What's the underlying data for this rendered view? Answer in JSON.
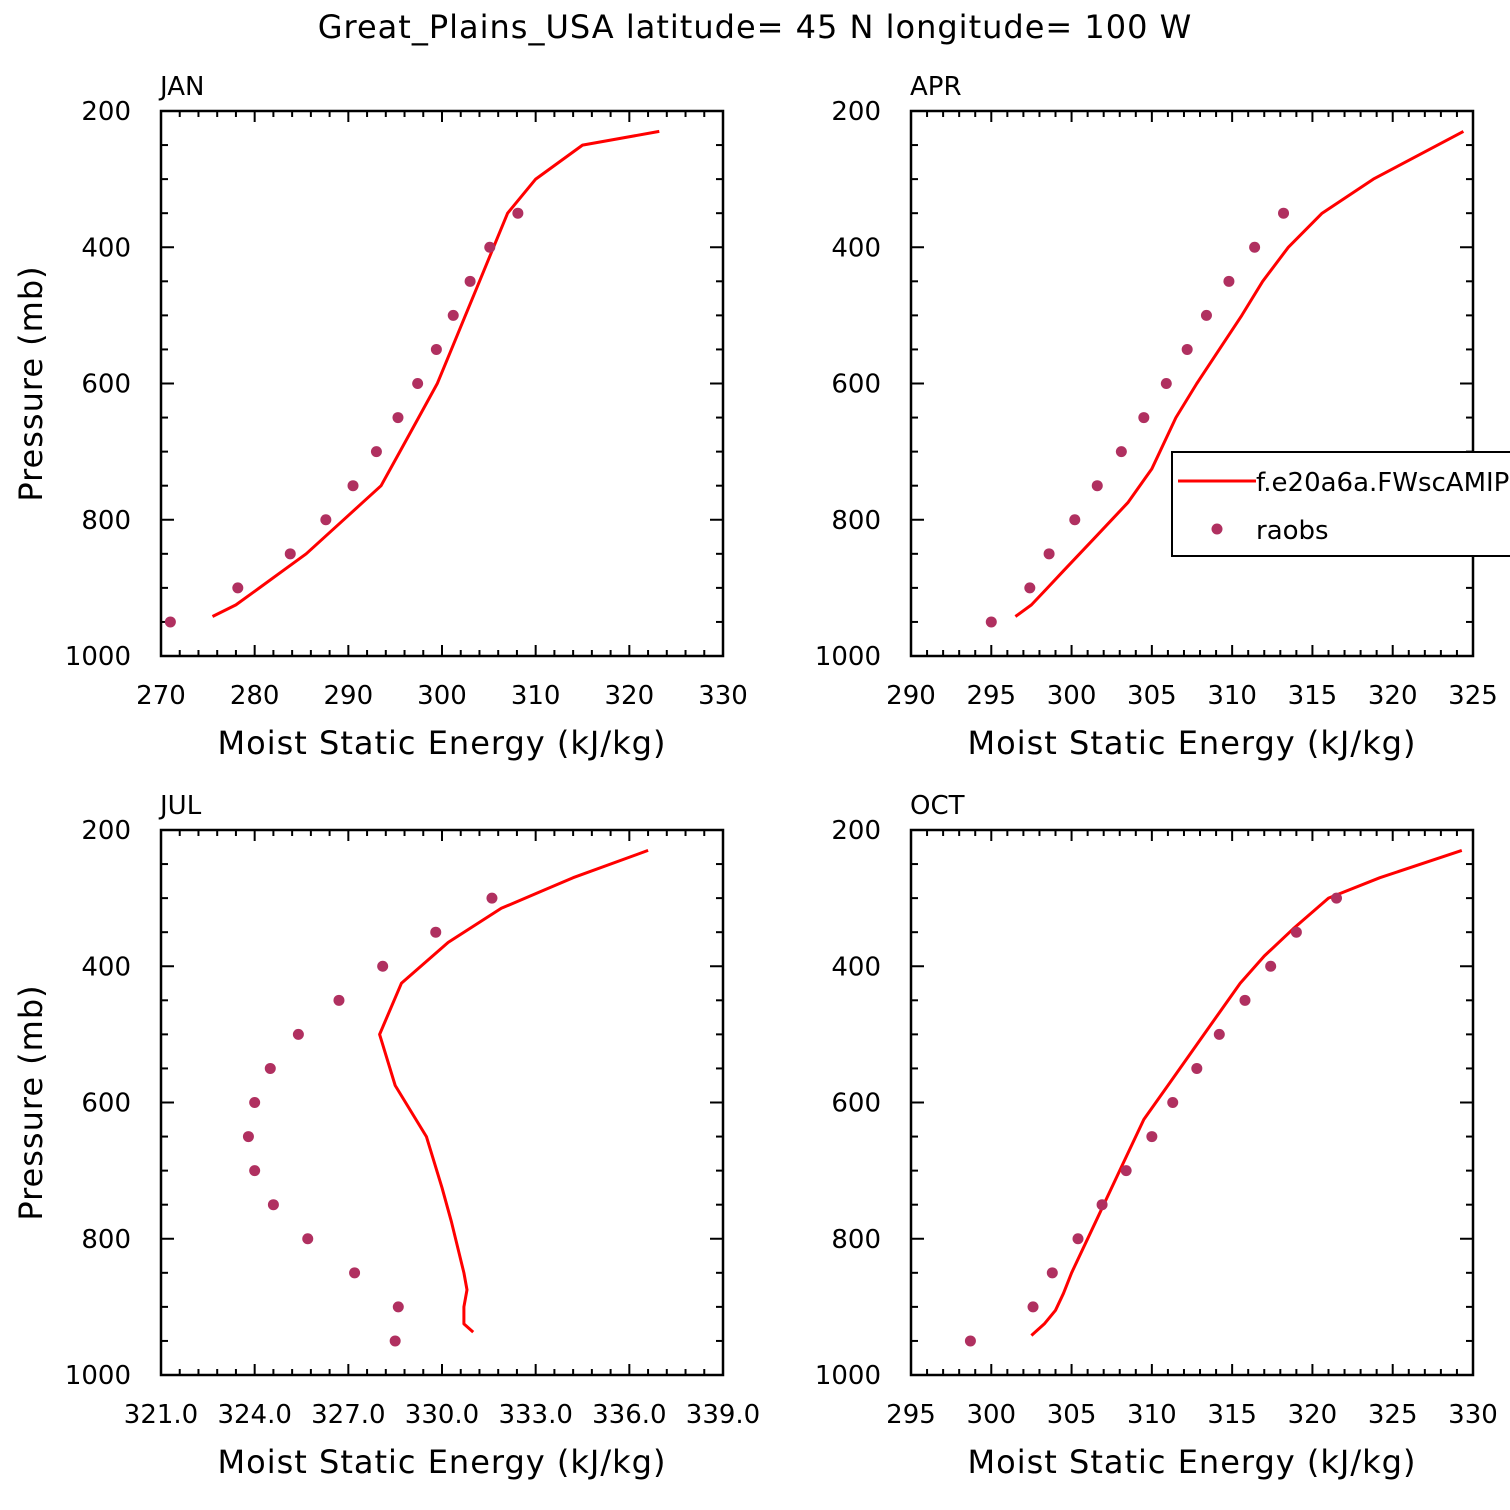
{
  "title": "Great_Plains_USA  latitude= 45 N longitude= 100 W",
  "colors": {
    "model": "#ff0000",
    "obs": "#b03060",
    "axis": "#000000"
  },
  "chart_data": [
    {
      "type": "line",
      "panel_label": "JAN",
      "xlabel": "Moist Static Energy (kJ/kg)",
      "ylabel": "Pressure (mb)",
      "xlim": [
        270,
        330
      ],
      "ylim": [
        1000,
        200
      ],
      "xticks": [
        270,
        280,
        290,
        300,
        310,
        320,
        330
      ],
      "xtick_labels": [
        "270",
        "280",
        "290",
        "300",
        "310",
        "320",
        "330"
      ],
      "yticks": [
        1000,
        800,
        600,
        400,
        200
      ],
      "ytick_labels": [
        "1000",
        "800",
        "600",
        "400",
        "200"
      ],
      "series": [
        {
          "name": "f.e20a6a.FWscAMIP",
          "kind": "line",
          "x": [
            275.5,
            278.0,
            280.5,
            283.0,
            285.5,
            287.5,
            289.5,
            291.5,
            293.5,
            295.5,
            297.5,
            299.5,
            301.0,
            302.5,
            304.0,
            305.5,
            307.0,
            310.0,
            315.0,
            323.2
          ],
          "y": [
            942,
            925,
            900,
            875,
            850,
            825,
            800,
            775,
            750,
            700,
            650,
            600,
            550,
            500,
            450,
            400,
            350,
            300,
            250,
            230
          ]
        },
        {
          "name": "raobs",
          "kind": "scatter",
          "x": [
            271.0,
            278.2,
            283.8,
            287.6,
            290.5,
            293.0,
            295.3,
            297.4,
            299.4,
            301.2,
            303.0,
            305.1,
            308.1
          ],
          "y": [
            950,
            900,
            850,
            800,
            750,
            700,
            650,
            600,
            550,
            500,
            450,
            400,
            350
          ]
        }
      ]
    },
    {
      "type": "line",
      "panel_label": "APR",
      "xlabel": "Moist Static Energy (kJ/kg)",
      "ylabel": "",
      "xlim": [
        290,
        325
      ],
      "ylim": [
        1000,
        200
      ],
      "xticks": [
        290,
        295,
        300,
        305,
        310,
        315,
        320,
        325
      ],
      "xtick_labels": [
        "290",
        "295",
        "300",
        "305",
        "310",
        "315",
        "320",
        "325"
      ],
      "yticks": [
        1000,
        800,
        600,
        400,
        200
      ],
      "ytick_labels": [
        "1000",
        "800",
        "600",
        "400",
        "200"
      ],
      "legend": {
        "position": "right",
        "entries": [
          "f.e20a6a.FWscAMIP",
          "raobs"
        ]
      },
      "series": [
        {
          "name": "f.e20a6a.FWscAMIP",
          "kind": "line",
          "x": [
            296.5,
            297.5,
            298.5,
            299.5,
            300.5,
            301.5,
            302.5,
            303.5,
            305.0,
            306.5,
            307.8,
            309.2,
            310.6,
            311.9,
            313.5,
            315.6,
            318.8,
            324.4
          ],
          "y": [
            942,
            925,
            900,
            875,
            850,
            825,
            800,
            775,
            725,
            650,
            600,
            550,
            500,
            450,
            400,
            350,
            300,
            230
          ]
        },
        {
          "name": "raobs",
          "kind": "scatter",
          "x": [
            295.0,
            297.4,
            298.6,
            300.2,
            301.6,
            303.1,
            304.5,
            305.9,
            307.2,
            308.4,
            309.8,
            311.4,
            313.2
          ],
          "y": [
            950,
            900,
            850,
            800,
            750,
            700,
            650,
            600,
            550,
            500,
            450,
            400,
            350
          ]
        }
      ]
    },
    {
      "type": "line",
      "panel_label": "JUL",
      "xlabel": "Moist Static Energy (kJ/kg)",
      "ylabel": "Pressure (mb)",
      "xlim": [
        321,
        339
      ],
      "ylim": [
        1000,
        200
      ],
      "xticks": [
        321,
        324,
        327,
        330,
        333,
        336,
        339
      ],
      "xtick_labels": [
        "321.0",
        "324.0",
        "327.0",
        "330.0",
        "333.0",
        "336.0",
        "339.0"
      ],
      "yticks": [
        1000,
        800,
        600,
        400,
        200
      ],
      "ytick_labels": [
        "1000",
        "800",
        "600",
        "400",
        "200"
      ],
      "series": [
        {
          "name": "f.e20a6a.FWscAMIP",
          "kind": "line",
          "x": [
            331.0,
            330.7,
            330.7,
            330.8,
            330.7,
            330.3,
            330.0,
            329.5,
            328.5,
            328.0,
            328.7,
            330.2,
            331.9,
            334.2,
            336.6
          ],
          "y": [
            937,
            925,
            900,
            875,
            850,
            775,
            725,
            650,
            575,
            500,
            425,
            365,
            315,
            270,
            230
          ]
        },
        {
          "name": "raobs",
          "kind": "scatter",
          "x": [
            328.5,
            328.6,
            327.2,
            325.7,
            324.6,
            324.0,
            323.8,
            324.0,
            324.5,
            325.4,
            326.7,
            328.1,
            329.8,
            331.6
          ],
          "y": [
            950,
            900,
            850,
            800,
            750,
            700,
            650,
            600,
            550,
            500,
            450,
            400,
            350,
            300
          ]
        }
      ]
    },
    {
      "type": "line",
      "panel_label": "OCT",
      "xlabel": "Moist Static Energy (kJ/kg)",
      "ylabel": "",
      "xlim": [
        295,
        330
      ],
      "ylim": [
        1000,
        200
      ],
      "xticks": [
        295,
        300,
        305,
        310,
        315,
        320,
        325,
        330
      ],
      "xtick_labels": [
        "295",
        "300",
        "305",
        "310",
        "315",
        "320",
        "325",
        "330"
      ],
      "yticks": [
        1000,
        800,
        600,
        400,
        200
      ],
      "ytick_labels": [
        "1000",
        "800",
        "600",
        "400",
        "200"
      ],
      "series": [
        {
          "name": "f.e20a6a.FWscAMIP",
          "kind": "line",
          "x": [
            302.5,
            303.3,
            304.0,
            304.5,
            305.0,
            306.5,
            308.0,
            309.5,
            311.0,
            312.5,
            314.0,
            315.5,
            317.0,
            318.8,
            321.0,
            324.2,
            329.3
          ],
          "y": [
            942,
            925,
            905,
            880,
            850,
            775,
            700,
            625,
            575,
            525,
            475,
            425,
            385,
            345,
            300,
            270,
            230
          ]
        },
        {
          "name": "raobs",
          "kind": "scatter",
          "x": [
            298.7,
            302.6,
            303.8,
            305.4,
            306.9,
            308.4,
            310.0,
            311.3,
            312.8,
            314.2,
            315.8,
            317.4,
            319.0,
            321.5
          ],
          "y": [
            950,
            900,
            850,
            800,
            750,
            700,
            650,
            600,
            550,
            500,
            450,
            400,
            350,
            300
          ]
        }
      ]
    }
  ]
}
